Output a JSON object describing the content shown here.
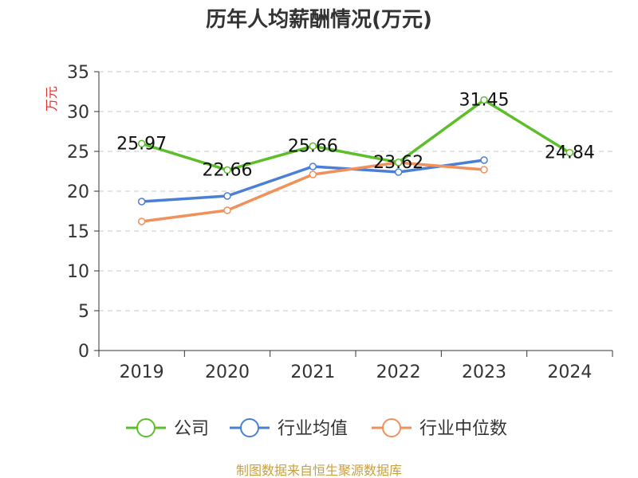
{
  "chart_data": {
    "type": "line",
    "title": "历年人均薪酬情况(万元)",
    "ylabel": "万元",
    "xlabel": "",
    "categories": [
      "2019",
      "2020",
      "2021",
      "2022",
      "2023",
      "2024"
    ],
    "ylim": [
      0,
      35
    ],
    "yticks": [
      0,
      5,
      10,
      15,
      20,
      25,
      30,
      35
    ],
    "grid": true,
    "legend_position": "bottom",
    "series": [
      {
        "name": "公司",
        "color": "#5cbf2a",
        "values": [
          25.97,
          22.66,
          25.66,
          23.62,
          31.45,
          24.84
        ],
        "labels": [
          "25.97",
          "22.66",
          "25.66",
          "23.62",
          "31.45",
          "24.84"
        ]
      },
      {
        "name": "行业均值",
        "color": "#4a7fd6",
        "values": [
          18.7,
          19.4,
          23.1,
          22.4,
          23.9,
          null
        ]
      },
      {
        "name": "行业中位数",
        "color": "#f0905a",
        "values": [
          16.2,
          17.6,
          22.1,
          23.6,
          22.7,
          null
        ]
      }
    ],
    "source": "制图数据来自恒生聚源数据库"
  }
}
